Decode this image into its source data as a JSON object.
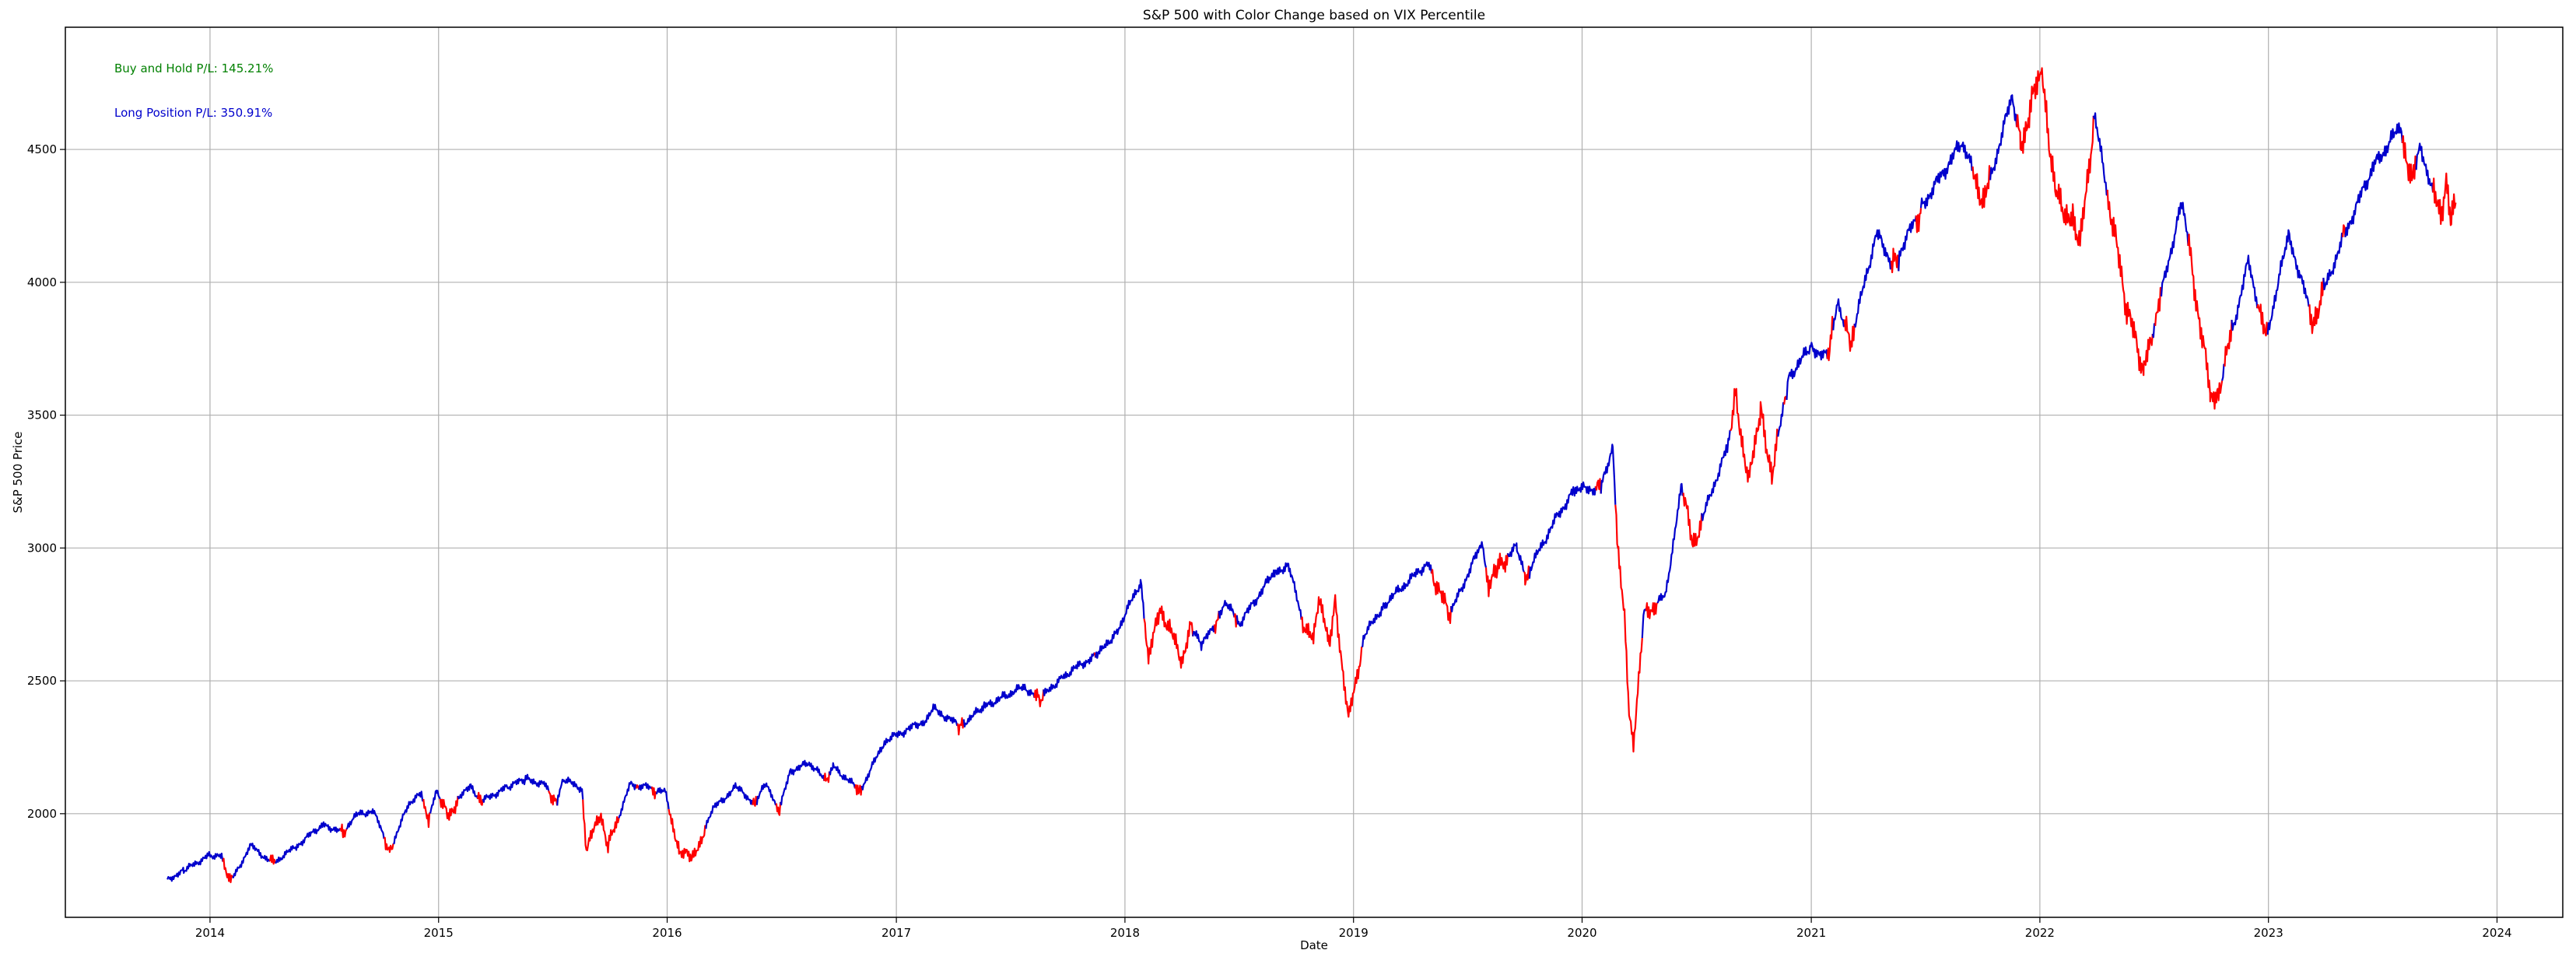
{
  "chart_data": {
    "type": "line",
    "title": "S&P 500 with Color Change based on VIX Percentile",
    "xlabel": "Date",
    "ylabel": "S&P 500 Price",
    "xlim": [
      "2013-05-15",
      "2024-04-15"
    ],
    "ylim": [
      1610,
      4960
    ],
    "x_ticks": [
      "2014",
      "2015",
      "2016",
      "2017",
      "2018",
      "2019",
      "2020",
      "2021",
      "2022",
      "2023",
      "2024"
    ],
    "y_ticks": [
      2000,
      2500,
      3000,
      3500,
      4000,
      4500
    ],
    "grid": true,
    "colors": {
      "high_vix": "#ff0000",
      "low_vix": "#0000cc",
      "buy_hold_text": "#008000",
      "long_position_text": "#0000cc",
      "grid": "#b0b0b0"
    },
    "annotations": [
      {
        "text": "Buy and Hold P/L: 145.21%",
        "color": "#008000"
      },
      {
        "text": "Long Position P/L: 350.91%",
        "color": "#0000cc"
      }
    ],
    "series": [
      {
        "points": [
          [
            "2013-10-25",
            1752
          ],
          [
            "2013-11-20",
            1785
          ],
          [
            "2013-12-31",
            1845
          ],
          [
            "2014-01-20",
            1838
          ],
          [
            "2014-02-03",
            1742
          ],
          [
            "2014-03-07",
            1880
          ],
          [
            "2014-04-11",
            1812
          ],
          [
            "2014-05-20",
            1880
          ],
          [
            "2014-06-30",
            1960
          ],
          [
            "2014-07-31",
            1930
          ],
          [
            "2014-08-25",
            1998
          ],
          [
            "2014-09-19",
            2010
          ],
          [
            "2014-10-15",
            1862
          ],
          [
            "2014-11-15",
            2040
          ],
          [
            "2014-12-05",
            2075
          ],
          [
            "2014-12-16",
            1972
          ],
          [
            "2014-12-29",
            2090
          ],
          [
            "2015-01-15",
            1992
          ],
          [
            "2015-02-20",
            2110
          ],
          [
            "2015-03-10",
            2045
          ],
          [
            "2015-04-20",
            2100
          ],
          [
            "2015-05-20",
            2130
          ],
          [
            "2015-06-20",
            2110
          ],
          [
            "2015-07-08",
            2045
          ],
          [
            "2015-07-20",
            2128
          ],
          [
            "2015-08-18",
            2095
          ],
          [
            "2015-08-25",
            1868
          ],
          [
            "2015-09-16",
            1995
          ],
          [
            "2015-09-29",
            1880
          ],
          [
            "2015-11-03",
            2110
          ],
          [
            "2015-12-01",
            2100
          ],
          [
            "2015-12-29",
            2080
          ],
          [
            "2016-01-20",
            1860
          ],
          [
            "2016-02-11",
            1830
          ],
          [
            "2016-03-15",
            2020
          ],
          [
            "2016-04-20",
            2100
          ],
          [
            "2016-05-19",
            2040
          ],
          [
            "2016-06-08",
            2115
          ],
          [
            "2016-06-27",
            2000
          ],
          [
            "2016-07-15",
            2160
          ],
          [
            "2016-08-15",
            2190
          ],
          [
            "2016-09-09",
            2128
          ],
          [
            "2016-09-22",
            2178
          ],
          [
            "2016-11-04",
            2085
          ],
          [
            "2016-12-13",
            2272
          ],
          [
            "2017-02-15",
            2350
          ],
          [
            "2017-03-01",
            2395
          ],
          [
            "2017-04-13",
            2330
          ],
          [
            "2017-05-20",
            2400
          ],
          [
            "2017-06-20",
            2440
          ],
          [
            "2017-07-25",
            2478
          ],
          [
            "2017-08-17",
            2425
          ],
          [
            "2017-09-20",
            2510
          ],
          [
            "2017-10-25",
            2565
          ],
          [
            "2017-11-20",
            2600
          ],
          [
            "2017-12-20",
            2690
          ],
          [
            "2018-01-26",
            2872
          ],
          [
            "2018-02-08",
            2580
          ],
          [
            "2018-02-26",
            2780
          ],
          [
            "2018-04-02",
            2580
          ],
          [
            "2018-04-18",
            2710
          ],
          [
            "2018-05-03",
            2630
          ],
          [
            "2018-06-12",
            2790
          ],
          [
            "2018-07-03",
            2715
          ],
          [
            "2018-08-29",
            2915
          ],
          [
            "2018-09-20",
            2930
          ],
          [
            "2018-10-11",
            2730
          ],
          [
            "2018-10-29",
            2642
          ],
          [
            "2018-11-07",
            2810
          ],
          [
            "2018-11-23",
            2630
          ],
          [
            "2018-12-03",
            2790
          ],
          [
            "2018-12-24",
            2351
          ],
          [
            "2019-01-18",
            2670
          ],
          [
            "2019-02-20",
            2790
          ],
          [
            "2019-04-30",
            2945
          ],
          [
            "2019-06-03",
            2745
          ],
          [
            "2019-07-26",
            3025
          ],
          [
            "2019-08-05",
            2845
          ],
          [
            "2019-08-20",
            2930
          ],
          [
            "2019-09-19",
            3006
          ],
          [
            "2019-10-02",
            2888
          ],
          [
            "2019-11-20",
            3110
          ],
          [
            "2019-12-20",
            3220
          ],
          [
            "2020-01-31",
            3225
          ],
          [
            "2020-02-19",
            3386
          ],
          [
            "2020-02-28",
            2955
          ],
          [
            "2020-03-09",
            2745
          ],
          [
            "2020-03-16",
            2386
          ],
          [
            "2020-03-23",
            2237
          ],
          [
            "2020-04-08",
            2750
          ],
          [
            "2020-05-13",
            2820
          ],
          [
            "2020-06-08",
            3232
          ],
          [
            "2020-06-26",
            3010
          ],
          [
            "2020-08-20",
            3380
          ],
          [
            "2020-09-02",
            3580
          ],
          [
            "2020-09-23",
            3237
          ],
          [
            "2020-10-12",
            3535
          ],
          [
            "2020-10-30",
            3270
          ],
          [
            "2020-11-25",
            3640
          ],
          [
            "2020-12-31",
            3756
          ],
          [
            "2021-01-29",
            3715
          ],
          [
            "2021-02-12",
            3935
          ],
          [
            "2021-03-04",
            3768
          ],
          [
            "2021-04-15",
            4185
          ],
          [
            "2021-05-12",
            4063
          ],
          [
            "2021-06-25",
            4280
          ],
          [
            "2021-08-30",
            4528
          ],
          [
            "2021-10-04",
            4300
          ],
          [
            "2021-11-18",
            4705
          ],
          [
            "2021-12-01",
            4515
          ],
          [
            "2022-01-03",
            4796
          ],
          [
            "2022-01-27",
            4326
          ],
          [
            "2022-02-23",
            4225
          ],
          [
            "2022-03-08",
            4170
          ],
          [
            "2022-03-29",
            4631
          ],
          [
            "2022-05-20",
            3900
          ],
          [
            "2022-06-16",
            3666
          ],
          [
            "2022-08-16",
            4305
          ],
          [
            "2022-09-30",
            3585
          ],
          [
            "2022-10-12",
            3577
          ],
          [
            "2022-11-30",
            4080
          ],
          [
            "2022-12-28",
            3783
          ],
          [
            "2023-02-02",
            4179
          ],
          [
            "2023-03-13",
            3855
          ],
          [
            "2023-05-01",
            4170
          ],
          [
            "2023-06-15",
            4425
          ],
          [
            "2023-07-31",
            4589
          ],
          [
            "2023-08-18",
            4370
          ],
          [
            "2023-09-01",
            4515
          ],
          [
            "2023-09-22",
            4320
          ],
          [
            "2023-10-05",
            4258
          ],
          [
            "2023-10-12",
            4349
          ],
          [
            "2023-10-20",
            4224
          ],
          [
            "2023-10-27",
            4300
          ]
        ],
        "high_vix_periods": [
          [
            "2014-01-22",
            "2014-02-07"
          ],
          [
            "2014-04-07",
            "2014-04-16"
          ],
          [
            "2014-07-29",
            "2014-08-08"
          ],
          [
            "2014-10-07",
            "2014-10-21"
          ],
          [
            "2014-12-09",
            "2014-12-19"
          ],
          [
            "2015-01-05",
            "2015-02-02"
          ],
          [
            "2015-03-06",
            "2015-03-13"
          ],
          [
            "2015-06-26",
            "2015-07-10"
          ],
          [
            "2015-08-20",
            "2015-10-16"
          ],
          [
            "2015-11-13",
            "2015-11-18"
          ],
          [
            "2015-12-09",
            "2015-12-16"
          ],
          [
            "2016-01-04",
            "2016-03-04"
          ],
          [
            "2016-05-17",
            "2016-05-24"
          ],
          [
            "2016-06-24",
            "2016-07-01"
          ],
          [
            "2016-09-09",
            "2016-09-16"
          ],
          [
            "2016-10-28",
            "2016-11-08"
          ],
          [
            "2017-04-10",
            "2017-04-19"
          ],
          [
            "2017-08-10",
            "2017-08-24"
          ],
          [
            "2017-11-14",
            "2017-11-16"
          ],
          [
            "2018-02-02",
            "2018-04-20"
          ],
          [
            "2018-05-25",
            "2018-06-01"
          ],
          [
            "2018-06-25",
            "2018-06-29"
          ],
          [
            "2018-10-10",
            "2019-01-14"
          ],
          [
            "2019-05-07",
            "2019-06-07"
          ],
          [
            "2019-08-02",
            "2019-09-05"
          ],
          [
            "2019-10-01",
            "2019-10-09"
          ],
          [
            "2020-01-24",
            "2020-02-01"
          ],
          [
            "2020-02-24",
            "2020-04-06"
          ],
          [
            "2020-04-13",
            "2020-05-01"
          ],
          [
            "2020-06-11",
            "2020-07-10"
          ],
          [
            "2020-08-25",
            "2020-11-09"
          ],
          [
            "2020-11-20",
            "2020-11-24"
          ],
          [
            "2021-01-27",
            "2021-02-05"
          ],
          [
            "2021-02-24",
            "2021-03-12"
          ],
          [
            "2021-05-10",
            "2021-05-21"
          ],
          [
            "2021-06-18",
            "2021-06-25"
          ],
          [
            "2021-09-17",
            "2021-10-15"
          ],
          [
            "2021-11-26",
            "2022-03-28"
          ],
          [
            "2022-04-20",
            "2022-06-30"
          ],
          [
            "2022-07-05",
            "2022-07-15"
          ],
          [
            "2022-08-26",
            "2022-10-20"
          ],
          [
            "2022-10-24",
            "2022-11-04"
          ],
          [
            "2022-12-15",
            "2022-12-31"
          ],
          [
            "2023-03-09",
            "2023-03-31"
          ],
          [
            "2023-05-01",
            "2023-05-05"
          ],
          [
            "2023-08-03",
            "2023-08-25"
          ],
          [
            "2023-09-21",
            "2023-10-27"
          ]
        ]
      }
    ]
  }
}
